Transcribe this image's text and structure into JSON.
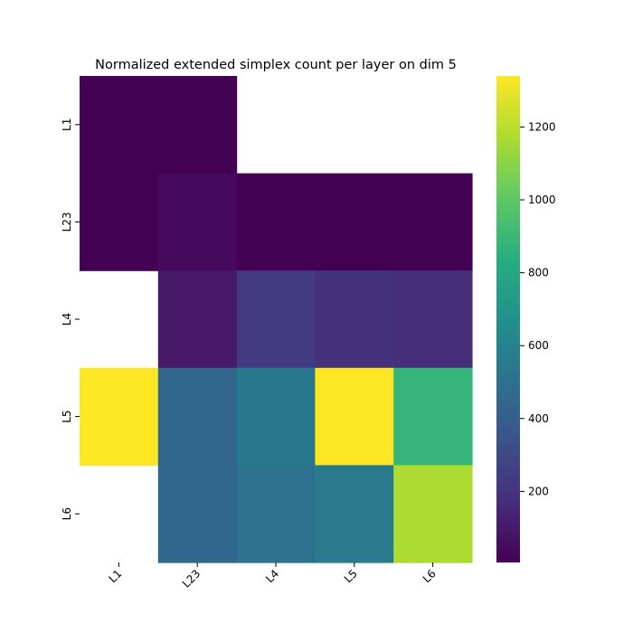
{
  "chart_data": {
    "type": "heatmap",
    "title": "Normalized extended simplex count per layer on dim 5",
    "xlabel": "",
    "ylabel": "",
    "x_categories": [
      "L1",
      "L23",
      "L4",
      "L5",
      "L6"
    ],
    "y_categories": [
      "L1",
      "L23",
      "L4",
      "L5",
      "L6"
    ],
    "values": [
      [
        5,
        5,
        null,
        null,
        null
      ],
      [
        5,
        40,
        5,
        5,
        5
      ],
      [
        null,
        95,
        235,
        195,
        175
      ],
      [
        1340,
        450,
        545,
        1340,
        880
      ],
      [
        null,
        445,
        500,
        550,
        1170
      ]
    ],
    "colorscale": "viridis",
    "color_min": 5,
    "color_max": 1340,
    "colorbar_ticks": [
      200,
      400,
      600,
      800,
      1000,
      1200
    ],
    "grid": false,
    "legend": "colorbar-right"
  }
}
